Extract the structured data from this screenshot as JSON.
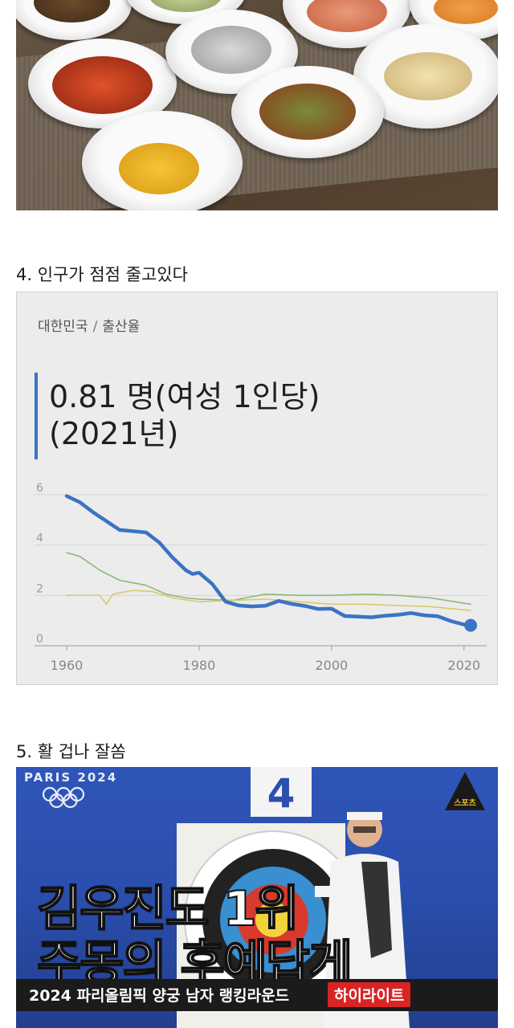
{
  "sections": [
    {
      "heading": "4. 인구가 점점 줄고있다"
    },
    {
      "heading": "5. 활 겁나 잘쏨"
    }
  ],
  "chart": {
    "breadcrumb_country": "대한민국",
    "breadcrumb_sep": "/",
    "breadcrumb_metric": "출산율",
    "headline_line1": "0.81 명(여성 1인당)",
    "headline_line2": "(2021년)"
  },
  "chart_data": {
    "type": "line",
    "xlim": [
      1960,
      2021
    ],
    "ylim": [
      0,
      6
    ],
    "xticks": [
      "1960",
      "1980",
      "2000",
      "2020"
    ],
    "yticks": [
      "0",
      "2",
      "4",
      "6"
    ],
    "grid": true,
    "series": [
      {
        "color": "#3b73c4",
        "x": [
          1960,
          1962,
          1964,
          1966,
          1968,
          1970,
          1972,
          1974,
          1976,
          1978,
          1979,
          1980,
          1982,
          1984,
          1986,
          1988,
          1990,
          1992,
          1994,
          1996,
          1998,
          2000,
          2002,
          2004,
          2006,
          2008,
          2010,
          2012,
          2014,
          2016,
          2018,
          2020,
          2021
        ],
        "y": [
          5.95,
          5.7,
          5.3,
          4.95,
          4.6,
          4.55,
          4.5,
          4.1,
          3.5,
          3.0,
          2.85,
          2.9,
          2.45,
          1.75,
          1.6,
          1.56,
          1.59,
          1.78,
          1.66,
          1.58,
          1.46,
          1.47,
          1.18,
          1.16,
          1.13,
          1.19,
          1.23,
          1.3,
          1.21,
          1.17,
          0.98,
          0.84,
          0.81
        ]
      },
      {
        "color": "#8db87a",
        "x": [
          1960,
          1962,
          1965,
          1968,
          1970,
          1972,
          1975,
          1978,
          1980,
          1985,
          1990,
          1995,
          2000,
          2005,
          2010,
          2015,
          2021
        ],
        "y": [
          3.7,
          3.55,
          3.0,
          2.6,
          2.5,
          2.4,
          2.05,
          1.9,
          1.85,
          1.8,
          2.05,
          2.0,
          2.0,
          2.05,
          2.0,
          1.9,
          1.65
        ]
      },
      {
        "color": "#d8c96a",
        "x": [
          1960,
          1963,
          1965,
          1966,
          1967,
          1970,
          1973,
          1976,
          1980,
          1985,
          1990,
          1995,
          2000,
          2005,
          2010,
          2015,
          2021
        ],
        "y": [
          2.0,
          2.0,
          2.0,
          1.65,
          2.05,
          2.2,
          2.15,
          1.9,
          1.75,
          1.8,
          1.85,
          1.75,
          1.65,
          1.65,
          1.6,
          1.55,
          1.4
        ]
      }
    ]
  },
  "archery": {
    "event_label": "PARIS 2024",
    "target_number": "4",
    "logo_text": "스포츠",
    "headline_line1": "김우진도 1위",
    "headline_line2": "주몽의 후예답게",
    "caption": "2024 파리올림픽 양궁 남자 랭킹라운드",
    "badge": "하이라이트"
  }
}
